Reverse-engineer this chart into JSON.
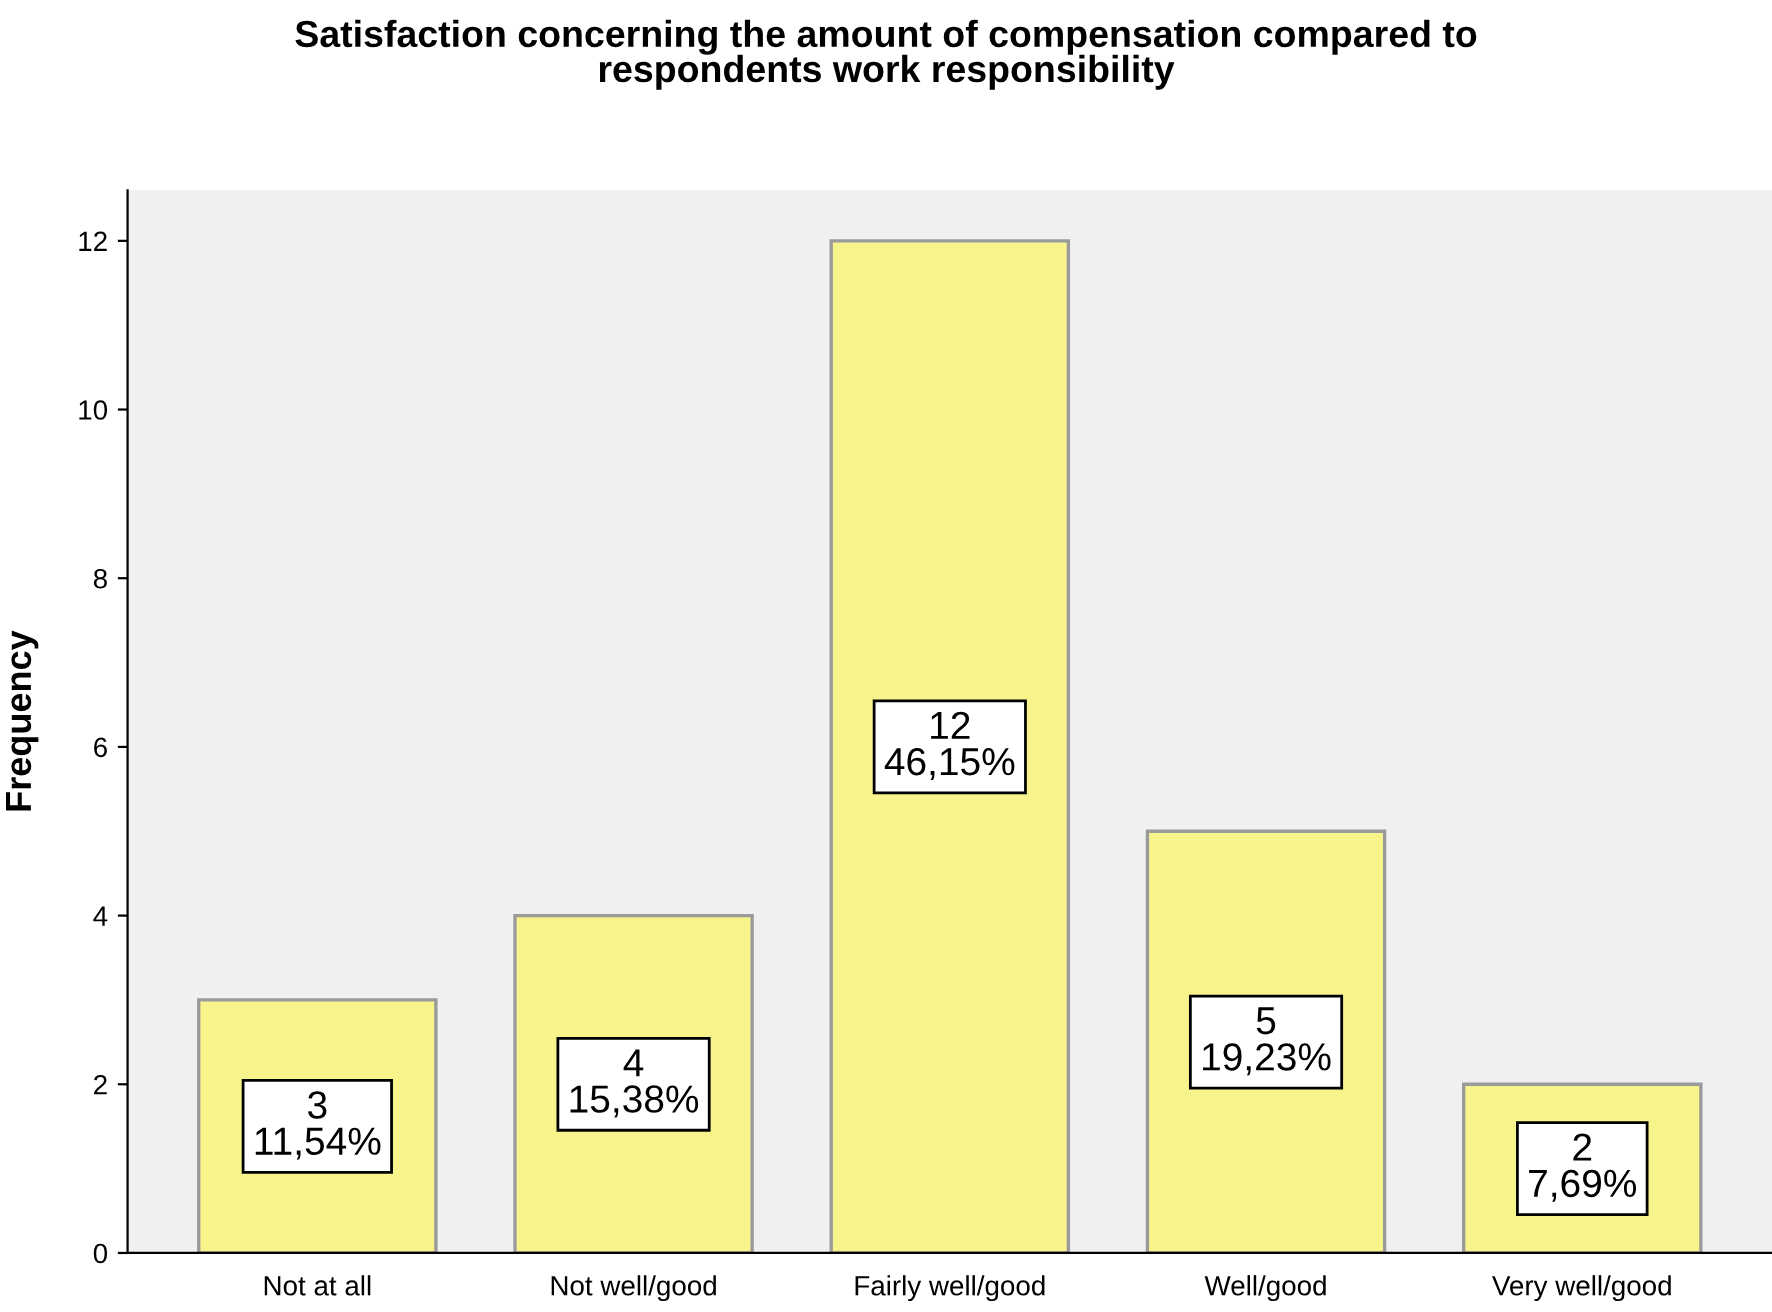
{
  "chart_data": {
    "type": "bar",
    "title": "Satisfaction concerning the amount of compensation compared to\nrespondents work responsibility",
    "ylabel": "Frequency",
    "categories": [
      "Not at all",
      "Not well/good",
      "Fairly well/good",
      "Well/good",
      "Very well/good"
    ],
    "values": [
      3,
      4,
      12,
      5,
      2
    ],
    "value_labels": [
      "3\n11,54%",
      "4\n15,38%",
      "12\n46,15%",
      "5\n19,23%",
      "2\n7,69%"
    ],
    "color": "#f8f48c",
    "ylim": [
      0,
      12.6
    ],
    "yticks": [
      0,
      2,
      4,
      6,
      8,
      10,
      12
    ],
    "grid": false
  }
}
